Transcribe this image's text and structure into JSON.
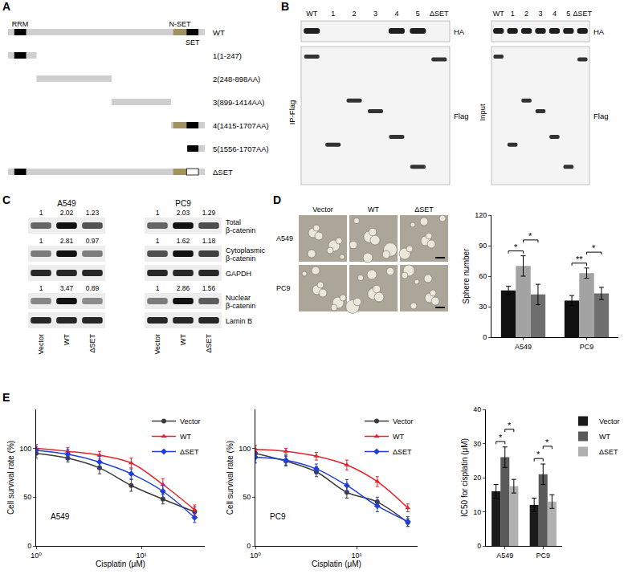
{
  "panels": {
    "A": {
      "letter": "A",
      "length": 1707,
      "domains": [
        {
          "label": "RRM",
          "start": 55,
          "end": 157,
          "color": "#000000"
        },
        {
          "label": "N-SET",
          "start": 1434,
          "end": 1550,
          "color": "#a39261"
        },
        {
          "label": "SET",
          "start": 1550,
          "end": 1652,
          "color": "#000000"
        }
      ],
      "constructs": [
        {
          "label": "WT",
          "start": 1,
          "end": 1707
        },
        {
          "label": "1(1-247)",
          "start": 1,
          "end": 247
        },
        {
          "label": "2(248-898AA)",
          "start": 248,
          "end": 898
        },
        {
          "label": "3(899-1414AA)",
          "start": 899,
          "end": 1414
        },
        {
          "label": "4(1415-1707AA)",
          "start": 1415,
          "end": 1707
        },
        {
          "label": "5(1556-1707AA)",
          "start": 1556,
          "end": 1707
        },
        {
          "label": "ΔSET",
          "start": 1,
          "end": 1707,
          "deleted": "SET"
        }
      ]
    },
    "B": {
      "letter": "B",
      "lanes": [
        "WT",
        "1",
        "2",
        "3",
        "4",
        "5",
        "ΔSET"
      ],
      "blots": [
        {
          "title": "IP-Flag",
          "rows": [
            "HA",
            "Flag"
          ],
          "ha_detected": [
            true,
            false,
            false,
            false,
            true,
            true,
            false
          ]
        },
        {
          "title": "Input",
          "rows": [
            "HA",
            "Flag"
          ],
          "ha_detected": [
            true,
            true,
            true,
            true,
            true,
            true,
            true
          ]
        }
      ]
    },
    "C": {
      "letter": "C",
      "cell_lines": [
        "A549",
        "PC9"
      ],
      "lanes": [
        "Vector",
        "WT",
        "ΔSET"
      ],
      "rows": [
        {
          "label": "Total β-catenin",
          "values": [
            [
              1,
              2.02,
              1.23
            ],
            [
              1,
              2.03,
              1.29
            ]
          ]
        },
        {
          "label": "Cytoplasmic β-catenin",
          "values": [
            [
              1,
              2.81,
              0.97
            ],
            [
              1,
              1.62,
              1.18
            ]
          ]
        },
        {
          "label": "GAPDH"
        },
        {
          "label": "Nuclear β-catenin",
          "values": [
            [
              1,
              3.47,
              0.89
            ],
            [
              1,
              2.86,
              1.56
            ]
          ]
        },
        {
          "label": "Lamin B"
        }
      ]
    },
    "D": {
      "letter": "D",
      "columns": [
        "Vector",
        "WT",
        "ΔSET"
      ],
      "rows": [
        "A549",
        "PC9"
      ]
    },
    "E": {
      "letter": "E"
    }
  },
  "chart_data": [
    {
      "type": "bar",
      "categories": [
        "A549",
        "PC9"
      ],
      "y_label": "Sphere number",
      "ylim": [
        0,
        120
      ],
      "yticks": [
        0,
        30,
        60,
        90,
        120
      ],
      "series": [
        {
          "name": "Vector",
          "color": "#111111",
          "values": [
            46,
            36
          ],
          "errors": [
            4,
            5
          ]
        },
        {
          "name": "WT",
          "color": "#a3a3a3",
          "values": [
            70,
            63
          ],
          "errors": [
            10,
            5
          ]
        },
        {
          "name": "ΔSET",
          "color": "#6e6e6e",
          "values": [
            42,
            43
          ],
          "errors": [
            10,
            6
          ]
        }
      ],
      "significance": [
        {
          "category": "A549",
          "from": "Vector",
          "to": "WT",
          "label": "*"
        },
        {
          "category": "A549",
          "from": "WT",
          "to": "ΔSET",
          "label": "*"
        },
        {
          "category": "PC9",
          "from": "Vector",
          "to": "WT",
          "label": "**"
        },
        {
          "category": "PC9",
          "from": "WT",
          "to": "ΔSET",
          "label": "*"
        }
      ]
    },
    {
      "type": "line",
      "x": [
        1,
        2,
        4,
        8,
        16,
        32
      ],
      "log": "x",
      "xlim": [
        1,
        40
      ],
      "xticks": [
        {
          "value": 1,
          "label": "10⁰"
        },
        {
          "value": 10,
          "label": "10¹"
        }
      ],
      "ylim": [
        0,
        140
      ],
      "yticks": [
        0,
        50,
        100
      ],
      "x_label": "Cisplatin (μM)",
      "y_label": "Cell survival rate (%)",
      "legend": "upper right",
      "annotations": [
        {
          "text": "A549"
        }
      ],
      "series": [
        {
          "name": "Vector",
          "color": "#3c3c3c",
          "marker": "circle",
          "values": [
            95,
            90,
            80,
            62,
            48,
            35
          ],
          "errors": [
            5,
            4,
            6,
            6,
            5,
            5
          ]
        },
        {
          "name": "WT",
          "color": "#e8212a",
          "marker": "triangle",
          "values": [
            100,
            97,
            93,
            85,
            63,
            37
          ],
          "errors": [
            4,
            4,
            4,
            5,
            6,
            5
          ]
        },
        {
          "name": "ΔSET",
          "color": "#1f3fd6",
          "marker": "diamond",
          "values": [
            98,
            94,
            86,
            74,
            56,
            29
          ],
          "errors": [
            4,
            5,
            6,
            5,
            6,
            5
          ]
        }
      ]
    },
    {
      "type": "line",
      "x": [
        1,
        2,
        4,
        8,
        16,
        32
      ],
      "log": "x",
      "xlim": [
        1,
        40
      ],
      "xticks": [
        {
          "value": 1,
          "label": "10⁰"
        },
        {
          "value": 10,
          "label": "10¹"
        }
      ],
      "ylim": [
        0,
        140
      ],
      "yticks": [
        0,
        50,
        100
      ],
      "x_label": "Cisplatin (μM)",
      "y_label": "Cell survival rate (%)",
      "legend": "upper right",
      "annotations": [
        {
          "text": "PC9"
        }
      ],
      "series": [
        {
          "name": "Vector",
          "color": "#3c3c3c",
          "marker": "circle",
          "values": [
            95,
            87,
            76,
            55,
            45,
            24
          ],
          "errors": [
            4,
            5,
            5,
            6,
            5,
            4
          ]
        },
        {
          "name": "WT",
          "color": "#e8212a",
          "marker": "triangle",
          "values": [
            99,
            97,
            92,
            83,
            66,
            39
          ],
          "errors": [
            4,
            3,
            4,
            5,
            5,
            4
          ]
        },
        {
          "name": "ΔSET",
          "color": "#1f3fd6",
          "marker": "diamond",
          "values": [
            91,
            88,
            79,
            62,
            41,
            25
          ],
          "errors": [
            6,
            5,
            5,
            6,
            6,
            5
          ]
        }
      ]
    },
    {
      "type": "bar",
      "categories": [
        "A549",
        "PC9"
      ],
      "y_label": "IC50 for cisplatin (μM)",
      "ylim": [
        0,
        40
      ],
      "yticks": [
        0,
        10,
        20,
        30,
        40
      ],
      "legend": "upper right",
      "series": [
        {
          "name": "Vector",
          "color": "#1a1a1a",
          "values": [
            16,
            12
          ],
          "errors": [
            2,
            2
          ]
        },
        {
          "name": "WT",
          "color": "#5a5a5a",
          "values": [
            26,
            21
          ],
          "errors": [
            3,
            3
          ]
        },
        {
          "name": "ΔSET",
          "color": "#b0b0b0",
          "values": [
            17.5,
            13
          ],
          "errors": [
            2,
            2
          ]
        }
      ],
      "significance": [
        {
          "category": "A549",
          "from": "Vector",
          "to": "WT",
          "label": "*"
        },
        {
          "category": "A549",
          "from": "WT",
          "to": "ΔSET",
          "label": "*"
        },
        {
          "category": "PC9",
          "from": "Vector",
          "to": "WT",
          "label": "*"
        },
        {
          "category": "PC9",
          "from": "WT",
          "to": "ΔSET",
          "label": "*"
        }
      ]
    }
  ]
}
